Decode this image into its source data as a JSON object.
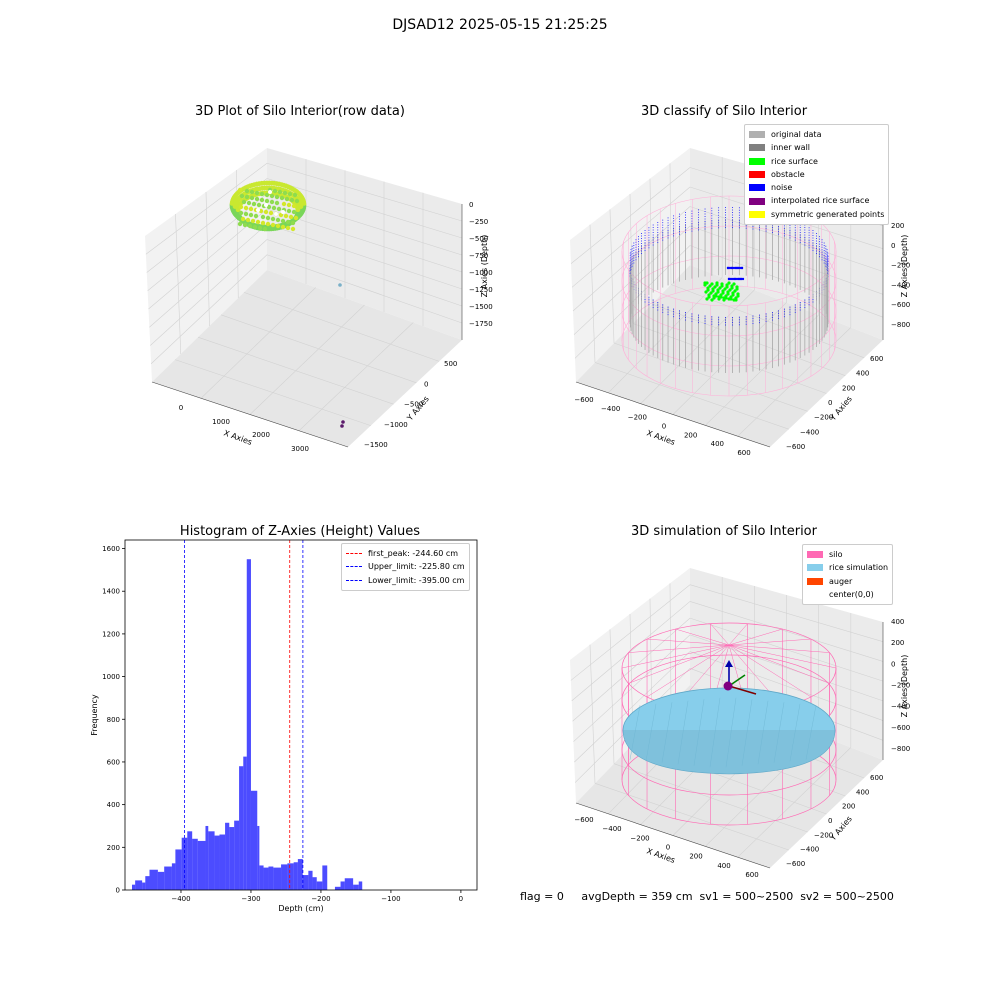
{
  "suptitle": "DJSAD12 2025-05-15 21:25:25",
  "footer": "flag = 0     avgDepth = 359 cm  sv1 = 500~2500  sv2 = 500~2500",
  "chart_data": [
    {
      "type": "scatter",
      "title": "3D Plot of Silo Interior(row data)",
      "xlabel": "X Axies",
      "ylabel": "Y Axies",
      "zlabel": "Z Axies (Depth)",
      "x_ticks": [
        "0",
        "1000",
        "2000",
        "3000"
      ],
      "y_ticks": [
        "500",
        "0",
        "−500",
        "−1000",
        "−1500"
      ],
      "z_ticks": [
        "0",
        "−250",
        "−500",
        "−750",
        "−1000",
        "−1250",
        "−1500",
        "−1750"
      ],
      "grid": true
    },
    {
      "type": "scatter",
      "title": "3D classify of Silo Interior",
      "xlabel": "X Axies",
      "ylabel": "Y Axies",
      "zlabel": "Z Axies (Depth)",
      "x_ticks": [
        "−600",
        "−400",
        "−200",
        "0",
        "200",
        "400",
        "600"
      ],
      "y_ticks": [
        "600",
        "400",
        "200",
        "0",
        "−200",
        "−400",
        "−600"
      ],
      "z_ticks": [
        "200",
        "0",
        "−200",
        "−400",
        "−600",
        "−800"
      ],
      "legend_position": "upper-right",
      "legend": [
        {
          "label": "original data",
          "color": "#b0b0b0"
        },
        {
          "label": "inner wall",
          "color": "#808080"
        },
        {
          "label": "rice surface",
          "color": "#00ff00"
        },
        {
          "label": "obstacle",
          "color": "#ff0000"
        },
        {
          "label": "noise",
          "color": "#0000ff"
        },
        {
          "label": "interpolated rice surface",
          "color": "#800080"
        },
        {
          "label": "symmetric generated points",
          "color": "#ffff00"
        }
      ],
      "grid": true
    },
    {
      "type": "bar",
      "title": "Histogram of Z-Axies (Height) Values",
      "xlabel": "Depth (cm)",
      "ylabel": "Frequency",
      "xlim": [
        -480,
        23
      ],
      "ylim": [
        0,
        1640
      ],
      "x_ticks": [
        "−400",
        "−300",
        "−200",
        "−100",
        "0"
      ],
      "y_ticks": [
        "0",
        "200",
        "400",
        "600",
        "800",
        "1000",
        "1200",
        "1400",
        "1600"
      ],
      "bar_color": "#0000ff",
      "bins": [
        {
          "x0": -470,
          "x1": -465.5,
          "y": 25
        },
        {
          "x0": -465.5,
          "x1": -455.5,
          "y": 45
        },
        {
          "x0": -455.5,
          "x1": -451,
          "y": 35
        },
        {
          "x0": -451,
          "x1": -445,
          "y": 65
        },
        {
          "x0": -445,
          "x1": -433,
          "y": 95
        },
        {
          "x0": -433,
          "x1": -424,
          "y": 85
        },
        {
          "x0": -424,
          "x1": -413,
          "y": 110
        },
        {
          "x0": -413,
          "x1": -408,
          "y": 125
        },
        {
          "x0": -408,
          "x1": -399,
          "y": 190
        },
        {
          "x0": -399,
          "x1": -391,
          "y": 245
        },
        {
          "x0": -391,
          "x1": -384,
          "y": 275
        },
        {
          "x0": -384,
          "x1": -376,
          "y": 240
        },
        {
          "x0": -376,
          "x1": -365,
          "y": 230
        },
        {
          "x0": -365,
          "x1": -361,
          "y": 300
        },
        {
          "x0": -361,
          "x1": -352,
          "y": 275
        },
        {
          "x0": -352,
          "x1": -345,
          "y": 255
        },
        {
          "x0": -345,
          "x1": -337,
          "y": 260
        },
        {
          "x0": -337,
          "x1": -331,
          "y": 315
        },
        {
          "x0": -331,
          "x1": -324,
          "y": 295
        },
        {
          "x0": -324,
          "x1": -317,
          "y": 325
        },
        {
          "x0": -317,
          "x1": -311,
          "y": 580
        },
        {
          "x0": -311,
          "x1": -306,
          "y": 625
        },
        {
          "x0": -306,
          "x1": -300,
          "y": 1550
        },
        {
          "x0": -300,
          "x1": -291,
          "y": 465
        },
        {
          "x0": -291,
          "x1": -288,
          "y": 300
        },
        {
          "x0": -288,
          "x1": -282,
          "y": 115
        },
        {
          "x0": -282,
          "x1": -275,
          "y": 105
        },
        {
          "x0": -275,
          "x1": -268,
          "y": 110
        },
        {
          "x0": -268,
          "x1": -257,
          "y": 105
        },
        {
          "x0": -257,
          "x1": -248,
          "y": 120
        },
        {
          "x0": -248,
          "x1": -239,
          "y": 125
        },
        {
          "x0": -239,
          "x1": -233,
          "y": 130
        },
        {
          "x0": -233,
          "x1": -226,
          "y": 145
        },
        {
          "x0": -226,
          "x1": -218,
          "y": 70
        },
        {
          "x0": -218,
          "x1": -212,
          "y": 90
        },
        {
          "x0": -212,
          "x1": -206,
          "y": 60
        },
        {
          "x0": -206,
          "x1": -198,
          "y": 40
        },
        {
          "x0": -198,
          "x1": -191,
          "y": 115
        },
        {
          "x0": -180,
          "x1": -172,
          "y": 15
        },
        {
          "x0": -172,
          "x1": -166,
          "y": 40
        },
        {
          "x0": -166,
          "x1": -154,
          "y": 55
        },
        {
          "x0": -154,
          "x1": -146,
          "y": 25
        },
        {
          "x0": -146,
          "x1": -141,
          "y": 40
        }
      ],
      "vlines": [
        {
          "label": "first_peak: -244.60 cm",
          "x": -244.6,
          "color": "#ff0000"
        },
        {
          "label": "Upper_limit: -225.80 cm",
          "x": -225.8,
          "color": "#0000ff"
        },
        {
          "label": "Lower_limit: -395.00 cm",
          "x": -395.0,
          "color": "#0000ff"
        }
      ],
      "legend_position": "upper-right",
      "grid": false
    },
    {
      "type": "scatter",
      "title": "3D simulation of Silo Interior",
      "xlabel": "X Axies",
      "ylabel": "Y Axies",
      "zlabel": "Z Axies (Depth)",
      "x_ticks": [
        "−600",
        "−400",
        "−200",
        "0",
        "200",
        "400",
        "600"
      ],
      "y_ticks": [
        "600",
        "400",
        "200",
        "0",
        "−200",
        "−400",
        "−600"
      ],
      "z_ticks": [
        "400",
        "200",
        "0",
        "−200",
        "−400",
        "−600",
        "−800"
      ],
      "legend_position": "upper-right",
      "legend": [
        {
          "label": "silo",
          "color": "#ff69b4"
        },
        {
          "label": "rice simulation",
          "color": "#87ceeb"
        },
        {
          "label": "auger",
          "color": "#ff4500"
        },
        {
          "label": "center(0,0)",
          "color": "#ffffff"
        }
      ],
      "grid": true
    }
  ]
}
